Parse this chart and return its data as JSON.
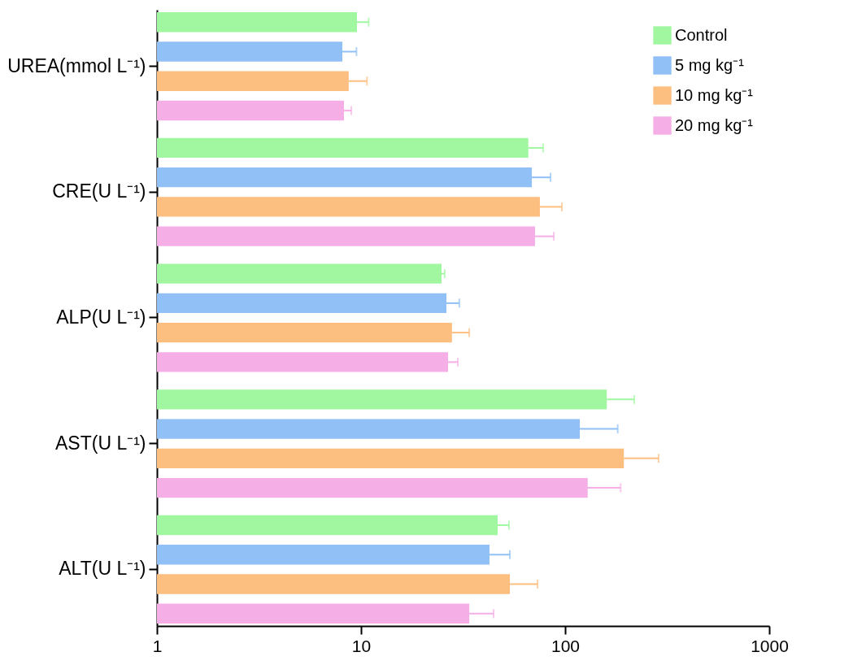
{
  "chart_data": {
    "type": "bar",
    "orientation": "horizontal",
    "log": "x",
    "grid": false,
    "legend": "top right",
    "categories": [
      "UREA(mmol L⁻¹)",
      "CRE(U L⁻¹)",
      "ALP(U L⁻¹)",
      "AST(U L⁻¹)",
      "ALT(U L⁻¹)"
    ],
    "xlim": [
      1,
      1000
    ],
    "xticks": [
      1,
      10,
      100,
      1000
    ],
    "series": [
      {
        "name": "Control",
        "color": "#a0f7a0",
        "values": [
          9.55,
          66,
          24.8,
          160,
          46.7
        ],
        "errors": [
          [
            9.55,
            10.9
          ],
          [
            66,
            78
          ],
          [
            24.8,
            25.7
          ],
          [
            160,
            218
          ],
          [
            46.7,
            53.1
          ]
        ]
      },
      {
        "name": "5 mg kg⁻¹",
        "color": "#90c0f5",
        "values": [
          8.1,
          68.7,
          26.2,
          118,
          42.6
        ],
        "errors": [
          [
            8.1,
            9.5
          ],
          [
            68.7,
            84.8
          ],
          [
            26.2,
            30.3
          ],
          [
            118,
            181
          ],
          [
            42.6,
            53.6
          ]
        ]
      },
      {
        "name": "10 mg kg⁻¹",
        "color": "#fdbf80",
        "values": [
          8.7,
          75.2,
          27.9,
          194,
          53.6
        ],
        "errors": [
          [
            8.7,
            10.7
          ],
          [
            75.2,
            96.4
          ],
          [
            27.9,
            33.9
          ],
          [
            194,
            287
          ],
          [
            53.6,
            73.2
          ]
        ]
      },
      {
        "name": "20 mg kg⁻¹",
        "color": "#f5afe6",
        "values": [
          8.25,
          71.2,
          26.7,
          129,
          33.9
        ],
        "errors": [
          [
            8.25,
            8.96
          ],
          [
            71.2,
            88
          ],
          [
            26.7,
            29.8
          ],
          [
            129,
            187
          ],
          [
            33.9,
            44.6
          ]
        ]
      }
    ]
  }
}
